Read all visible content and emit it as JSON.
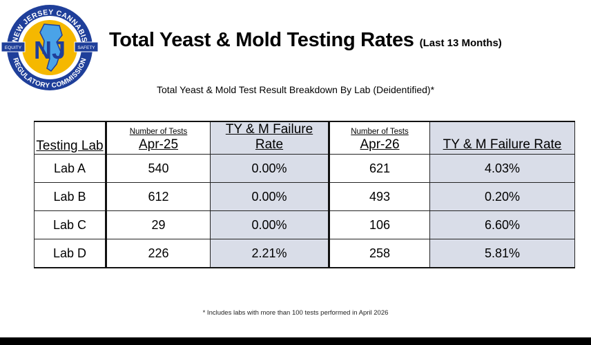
{
  "logo": {
    "top_text": "NEW JERSEY CANNABIS",
    "bottom_text": "REGULATORY COMMISSION",
    "left_banner": "EQUITY",
    "right_banner": "SAFETY",
    "monogram": "NJ",
    "colors": {
      "blue": "#1f3f9a",
      "gold": "#f5b800",
      "light_blue": "#4aa3e8"
    }
  },
  "title": {
    "main": "Total Yeast & Mold Testing Rates",
    "sub": "(Last 13 Months)"
  },
  "subtitle": "Total Yeast & Mold Test Result Breakdown By Lab (Deidentified)*",
  "table": {
    "header": {
      "lab": "Testing Lab",
      "count_caption_1": "Number of Tests",
      "period_1": "Apr-25",
      "rate_1": "TY & M Failure Rate",
      "count_caption_2": "Number of Tests",
      "period_2": "Apr-26",
      "rate_2": "TY & M Failure Rate"
    },
    "rows": [
      {
        "lab": "Lab A",
        "tests_1": "540",
        "rate_1": "0.00%",
        "tests_2": "621",
        "rate_2": "4.03%"
      },
      {
        "lab": "Lab B",
        "tests_1": "612",
        "rate_1": "0.00%",
        "tests_2": "493",
        "rate_2": "0.20%"
      },
      {
        "lab": "Lab C",
        "tests_1": "29",
        "rate_1": "0.00%",
        "tests_2": "106",
        "rate_2": "6.60%"
      },
      {
        "lab": "Lab D",
        "tests_1": "226",
        "rate_1": "2.21%",
        "tests_2": "258",
        "rate_2": "5.81%"
      }
    ],
    "shade_color": "#d9dde8"
  },
  "footnote": "* Includes labs with more than 100 tests performed in April 2026"
}
